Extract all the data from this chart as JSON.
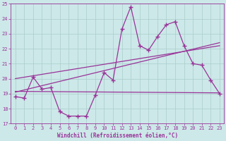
{
  "xlabel": "Windchill (Refroidissement éolien,°C)",
  "xlim": [
    -0.5,
    23.5
  ],
  "ylim": [
    17,
    25
  ],
  "yticks": [
    17,
    18,
    19,
    20,
    21,
    22,
    23,
    24,
    25
  ],
  "xticks": [
    0,
    1,
    2,
    3,
    4,
    5,
    6,
    7,
    8,
    9,
    10,
    11,
    12,
    13,
    14,
    15,
    16,
    17,
    18,
    19,
    20,
    21,
    22,
    23
  ],
  "bg_color": "#cce8e8",
  "line_color": "#993399",
  "grid_color": "#aacccc",
  "main_line": [
    18.8,
    18.7,
    20.1,
    19.3,
    19.4,
    17.8,
    17.5,
    17.5,
    17.5,
    18.9,
    20.4,
    19.9,
    23.3,
    24.8,
    22.2,
    21.9,
    22.8,
    23.6,
    23.8,
    22.2,
    21.0,
    20.9,
    19.9,
    19.0
  ],
  "reg_line1": [
    [
      0,
      23
    ],
    [
      19.1,
      22.4
    ]
  ],
  "reg_line2": [
    [
      0,
      23
    ],
    [
      20.0,
      22.2
    ]
  ],
  "flat_line": [
    [
      0,
      23
    ],
    [
      19.15,
      19.05
    ]
  ]
}
